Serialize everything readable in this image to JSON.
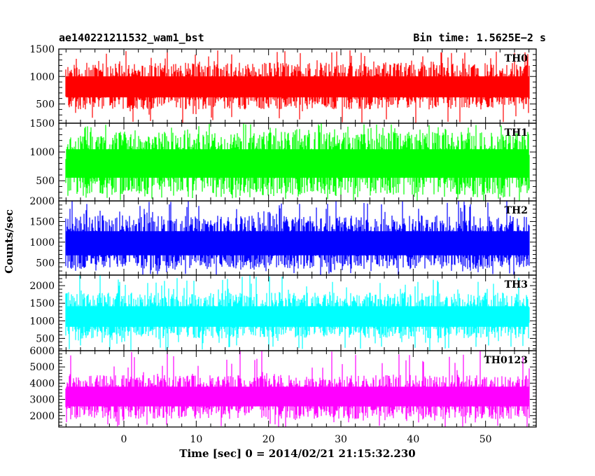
{
  "header": {
    "left_title": "ae140221211532_wam1_bst",
    "right_title": "Bin time: 1.5625E−2 s"
  },
  "chart_data": {
    "type": "line",
    "x_label": "Time [sec] 0 = 2014/02/21 21:15:32.230",
    "y_label": "Counts/sec",
    "bin_time_s": 0.015625,
    "xlim": [
      -9,
      57
    ],
    "data_xrange": [
      -8,
      56
    ],
    "x_ticks": [
      0,
      10,
      20,
      30,
      40,
      50
    ],
    "panels": [
      {
        "name": "TH0",
        "label": "TH0",
        "color": "#ff0000",
        "ylim": [
          150,
          1500
        ],
        "y_ticks": [
          500,
          1000,
          1500
        ],
        "typical_range": [
          400,
          1250
        ],
        "typical_mean": 800,
        "extremes": [
          150,
          1500
        ]
      },
      {
        "name": "TH1",
        "label": "TH1",
        "color": "#00ff00",
        "ylim": [
          150,
          1500
        ],
        "y_ticks": [
          500,
          1000,
          1500
        ],
        "typical_range": [
          250,
          1350
        ],
        "typical_mean": 800,
        "extremes": [
          150,
          1500
        ]
      },
      {
        "name": "TH2",
        "label": "TH2",
        "color": "#0000ff",
        "ylim": [
          200,
          2000
        ],
        "y_ticks": [
          500,
          1000,
          1500,
          2000
        ],
        "typical_range": [
          350,
          1650
        ],
        "typical_mean": 950,
        "extremes": [
          200,
          2000
        ]
      },
      {
        "name": "TH3",
        "label": "TH3",
        "color": "#00ffff",
        "ylim": [
          150,
          2300
        ],
        "y_ticks": [
          500,
          1000,
          1500,
          2000
        ],
        "typical_range": [
          500,
          1800
        ],
        "typical_mean": 1100,
        "extremes": [
          150,
          2300
        ]
      },
      {
        "name": "TH0123",
        "label": "TH0123",
        "color": "#ff00ff",
        "ylim": [
          1300,
          6000
        ],
        "y_ticks": [
          2000,
          3000,
          4000,
          5000,
          6000
        ],
        "typical_range": [
          1800,
          4500
        ],
        "typical_mean": 3200,
        "extremes": [
          1300,
          6000
        ]
      }
    ]
  }
}
